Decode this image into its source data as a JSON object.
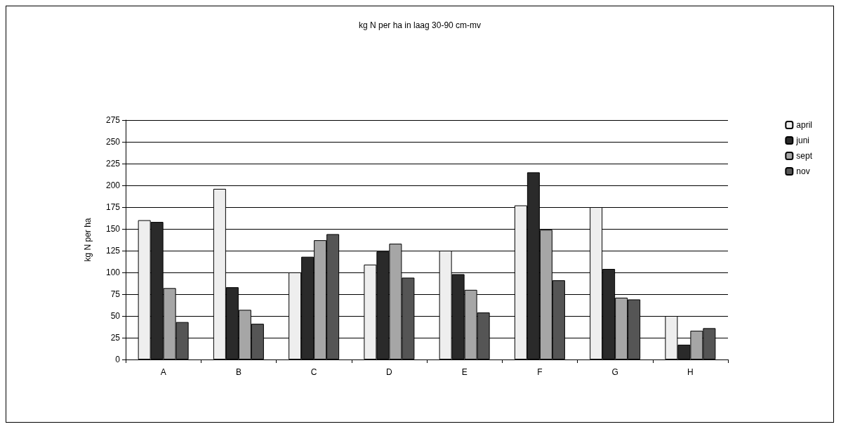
{
  "chart_data": {
    "type": "bar",
    "title": "kg N per ha in laag 30-90 cm-mv",
    "ylabel": "kg N per ha",
    "categories": [
      "A",
      "B",
      "C",
      "D",
      "E",
      "F",
      "G",
      "H"
    ],
    "series": [
      {
        "name": "april",
        "color": "#eeeeee",
        "values": [
          160,
          196,
          100,
          109,
          125,
          177,
          175,
          50
        ]
      },
      {
        "name": "juni",
        "color": "#2a2a2a",
        "values": [
          158,
          83,
          118,
          124,
          98,
          215,
          104,
          17
        ]
      },
      {
        "name": "sept",
        "color": "#a6a6a6",
        "values": [
          82,
          57,
          137,
          133,
          80,
          149,
          71,
          33
        ]
      },
      {
        "name": "nov",
        "color": "#555555",
        "values": [
          43,
          41,
          144,
          94,
          54,
          91,
          69,
          36
        ]
      }
    ],
    "ylim": [
      0,
      275
    ],
    "yticks": [
      0,
      25,
      50,
      75,
      100,
      125,
      150,
      175,
      200,
      225,
      250,
      275
    ],
    "grid": "y",
    "legend": "top right"
  }
}
